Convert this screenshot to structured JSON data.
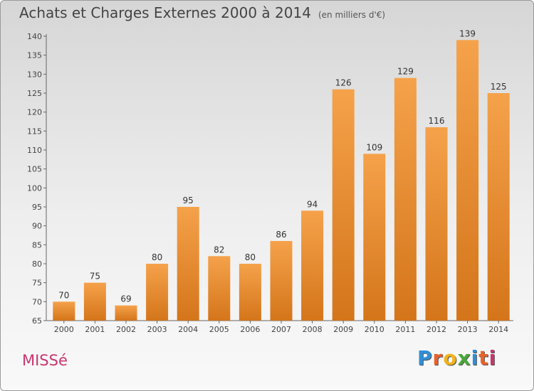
{
  "header": {
    "title": "Achats et Charges Externes 2000 à 2014",
    "unit": "(en milliers d'€)"
  },
  "footer": {
    "commune": "MISSé",
    "brand": "Proxiti"
  },
  "colors": {
    "bar_light": "#f5a24b",
    "bar_dark": "#d4751a",
    "commune": "#c8366e"
  },
  "chart_data": {
    "type": "bar",
    "title": "Achats et Charges Externes 2000 à 2014",
    "xlabel": "",
    "ylabel": "",
    "categories": [
      "2000",
      "2001",
      "2002",
      "2003",
      "2004",
      "2005",
      "2006",
      "2007",
      "2008",
      "2009",
      "2010",
      "2011",
      "2012",
      "2013",
      "2014"
    ],
    "values": [
      70,
      75,
      69,
      80,
      95,
      82,
      80,
      86,
      94,
      126,
      109,
      129,
      116,
      139,
      125
    ],
    "ylim": [
      65,
      140
    ],
    "yticks": [
      65,
      70,
      75,
      80,
      85,
      90,
      95,
      100,
      105,
      110,
      115,
      120,
      125,
      130,
      135,
      140
    ],
    "grid": false,
    "legend": "none"
  }
}
